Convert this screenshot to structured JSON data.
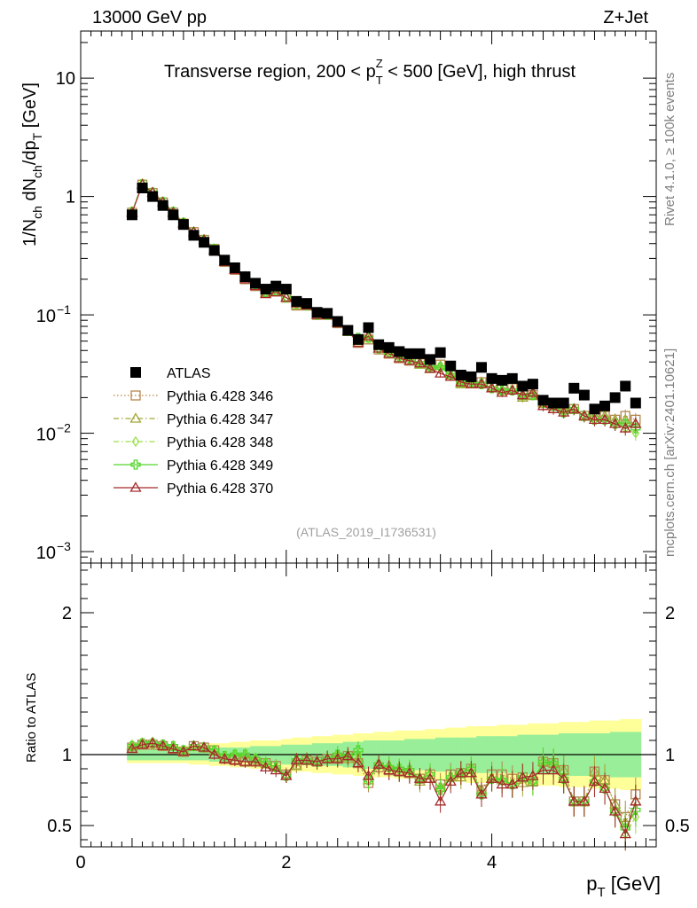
{
  "header": {
    "left": "13000 GeV pp",
    "right": "Z+Jet"
  },
  "side_labels": {
    "top": "Rivet 4.1.0, ≥ 100k events",
    "bottom": "mcplots.cern.ch [arXiv:2401.10621]"
  },
  "chart_data": [
    {
      "type": "scatter",
      "title": "Transverse region, 200 < pT^Z < 500 [GeV], high thrust",
      "title_parts": {
        "main": "Transverse region, 200 < p",
        "sub": "T",
        "sup": "Z",
        "tail": " < 500 [GeV], high thrust"
      },
      "ylabel": "1/N_ch dN_ch/dp_T [GeV]",
      "ylabel_parts": {
        "a": "1/N",
        "a_sub": "ch",
        "b": " dN",
        "b_sub": "ch",
        "c": "/dp",
        "c_sub": "T",
        "d": " [GeV]"
      },
      "yscale": "log",
      "ylim": [
        0.0008,
        25
      ],
      "xlim": [
        0,
        5.6
      ],
      "y_ticks": [
        {
          "v": 0.001,
          "base": "10",
          "exp": "−3"
        },
        {
          "v": 0.01,
          "base": "10",
          "exp": "−2"
        },
        {
          "v": 0.1,
          "base": "10",
          "exp": "−1"
        },
        {
          "v": 1,
          "label": "1"
        },
        {
          "v": 10,
          "label": "10"
        }
      ],
      "watermark": "(ATLAS_2019_I1736531)",
      "x": [
        0.5,
        0.6,
        0.7,
        0.8,
        0.9,
        1.0,
        1.1,
        1.2,
        1.3,
        1.4,
        1.5,
        1.6,
        1.7,
        1.8,
        1.9,
        2.0,
        2.1,
        2.2,
        2.3,
        2.4,
        2.5,
        2.6,
        2.7,
        2.8,
        2.9,
        3.0,
        3.1,
        3.2,
        3.3,
        3.4,
        3.5,
        3.6,
        3.7,
        3.8,
        3.9,
        4.0,
        4.1,
        4.2,
        4.3,
        4.4,
        4.5,
        4.6,
        4.7,
        4.8,
        4.9,
        5.0,
        5.1,
        5.2,
        5.3,
        5.4
      ],
      "series": [
        {
          "name": "ATLAS",
          "marker": "square",
          "color": "#000000",
          "values": [
            0.7,
            1.18,
            1.0,
            0.84,
            0.7,
            0.58,
            0.47,
            0.41,
            0.35,
            0.29,
            0.25,
            0.21,
            0.185,
            0.165,
            0.175,
            0.165,
            0.13,
            0.125,
            0.105,
            0.103,
            0.088,
            0.074,
            0.062,
            0.078,
            0.056,
            0.053,
            0.049,
            0.047,
            0.047,
            0.042,
            0.048,
            0.037,
            0.031,
            0.03,
            0.036,
            0.029,
            0.028,
            0.029,
            0.025,
            0.026,
            0.019,
            0.018,
            0.018,
            0.024,
            0.021,
            0.016,
            0.017,
            0.02,
            0.025,
            0.018
          ]
        },
        {
          "name": "Pythia 6.428 346",
          "marker": "open-square",
          "color": "#b5874f",
          "line": "dotted",
          "values": [
            0.73,
            1.26,
            1.07,
            0.89,
            0.73,
            0.59,
            0.5,
            0.43,
            0.36,
            0.28,
            0.24,
            0.2,
            0.175,
            0.155,
            0.16,
            0.14,
            0.12,
            0.12,
            0.1,
            0.1,
            0.085,
            0.073,
            0.058,
            0.062,
            0.051,
            0.047,
            0.043,
            0.041,
            0.039,
            0.036,
            0.038,
            0.032,
            0.027,
            0.027,
            0.027,
            0.025,
            0.024,
            0.024,
            0.021,
            0.021,
            0.018,
            0.017,
            0.016,
            0.016,
            0.014,
            0.014,
            0.014,
            0.013,
            0.014,
            0.013
          ]
        },
        {
          "name": "Pythia 6.428 347",
          "marker": "open-triangle",
          "color": "#a3a836",
          "line": "dashdot",
          "values": [
            0.74,
            1.27,
            1.08,
            0.9,
            0.74,
            0.6,
            0.5,
            0.43,
            0.36,
            0.28,
            0.24,
            0.21,
            0.18,
            0.155,
            0.16,
            0.14,
            0.12,
            0.12,
            0.1,
            0.1,
            0.086,
            0.072,
            0.06,
            0.064,
            0.052,
            0.049,
            0.043,
            0.041,
            0.038,
            0.035,
            0.037,
            0.031,
            0.026,
            0.026,
            0.027,
            0.024,
            0.023,
            0.023,
            0.02,
            0.021,
            0.018,
            0.017,
            0.016,
            0.016,
            0.014,
            0.014,
            0.014,
            0.013,
            0.013,
            0.012
          ]
        },
        {
          "name": "Pythia 6.428 348",
          "marker": "open-diamond",
          "color": "#9be04a",
          "line": "dashdot",
          "values": [
            0.75,
            1.28,
            1.09,
            0.9,
            0.74,
            0.6,
            0.5,
            0.43,
            0.36,
            0.29,
            0.25,
            0.21,
            0.18,
            0.155,
            0.16,
            0.14,
            0.125,
            0.12,
            0.1,
            0.1,
            0.088,
            0.073,
            0.062,
            0.064,
            0.052,
            0.048,
            0.044,
            0.042,
            0.039,
            0.036,
            0.036,
            0.031,
            0.027,
            0.027,
            0.026,
            0.024,
            0.023,
            0.023,
            0.021,
            0.021,
            0.018,
            0.017,
            0.015,
            0.016,
            0.014,
            0.013,
            0.013,
            0.012,
            0.011,
            0.01
          ]
        },
        {
          "name": "Pythia 6.428 349",
          "marker": "open-cross",
          "color": "#53d62a",
          "line": "solid",
          "values": [
            0.74,
            1.27,
            1.08,
            0.9,
            0.74,
            0.6,
            0.5,
            0.43,
            0.36,
            0.29,
            0.25,
            0.21,
            0.18,
            0.155,
            0.16,
            0.14,
            0.125,
            0.12,
            0.1,
            0.1,
            0.088,
            0.073,
            0.064,
            0.064,
            0.052,
            0.048,
            0.044,
            0.042,
            0.039,
            0.036,
            0.036,
            0.031,
            0.027,
            0.027,
            0.026,
            0.024,
            0.023,
            0.023,
            0.021,
            0.021,
            0.018,
            0.017,
            0.015,
            0.016,
            0.014,
            0.013,
            0.013,
            0.012,
            0.012,
            0.011
          ]
        },
        {
          "name": "Pythia 6.428 370",
          "marker": "open-triangle",
          "color": "#a52a2a",
          "line": "solid",
          "values": [
            0.73,
            1.26,
            1.08,
            0.89,
            0.73,
            0.59,
            0.5,
            0.43,
            0.35,
            0.28,
            0.24,
            0.2,
            0.175,
            0.15,
            0.155,
            0.14,
            0.125,
            0.12,
            0.1,
            0.1,
            0.085,
            0.073,
            0.058,
            0.066,
            0.052,
            0.047,
            0.043,
            0.041,
            0.039,
            0.035,
            0.032,
            0.03,
            0.027,
            0.026,
            0.026,
            0.024,
            0.022,
            0.023,
            0.021,
            0.022,
            0.017,
            0.016,
            0.015,
            0.016,
            0.014,
            0.013,
            0.013,
            0.012,
            0.011,
            0.012
          ]
        }
      ]
    },
    {
      "type": "line",
      "ylabel": "Ratio to ATLAS",
      "xlabel": "p_T [GeV]",
      "xlabel_parts": {
        "main": "p",
        "sub": "T",
        "tail": " [GeV]"
      },
      "xlim": [
        0,
        5.6
      ],
      "ylim": [
        0.35,
        2.35
      ],
      "x_ticks": [
        0,
        2,
        4
      ],
      "y_ticks": [
        0.5,
        1,
        2
      ],
      "reference": 1,
      "band_inner_halfwidth": [
        0.04,
        0.04,
        0.04,
        0.04,
        0.04,
        0.04,
        0.04,
        0.04,
        0.05,
        0.05,
        0.05,
        0.05,
        0.06,
        0.06,
        0.06,
        0.07,
        0.07,
        0.07,
        0.08,
        0.08,
        0.08,
        0.09,
        0.09,
        0.1,
        0.1,
        0.1,
        0.1,
        0.11,
        0.11,
        0.11,
        0.12,
        0.12,
        0.12,
        0.12,
        0.13,
        0.13,
        0.13,
        0.13,
        0.14,
        0.14,
        0.14,
        0.14,
        0.15,
        0.15,
        0.15,
        0.15,
        0.15,
        0.16,
        0.16,
        0.16
      ],
      "band_outer_halfwidth": [
        0.06,
        0.06,
        0.06,
        0.06,
        0.06,
        0.06,
        0.07,
        0.07,
        0.08,
        0.08,
        0.09,
        0.09,
        0.1,
        0.1,
        0.1,
        0.11,
        0.12,
        0.12,
        0.13,
        0.13,
        0.14,
        0.14,
        0.15,
        0.15,
        0.16,
        0.16,
        0.17,
        0.17,
        0.17,
        0.18,
        0.18,
        0.19,
        0.19,
        0.2,
        0.2,
        0.2,
        0.21,
        0.21,
        0.21,
        0.22,
        0.22,
        0.22,
        0.23,
        0.23,
        0.23,
        0.24,
        0.24,
        0.24,
        0.25,
        0.25
      ],
      "series": [
        {
          "name": "Pythia 6.428 346",
          "values": [
            1.05,
            1.07,
            1.07,
            1.06,
            1.04,
            1.02,
            1.06,
            1.05,
            1.03,
            0.97,
            0.96,
            0.95,
            0.95,
            0.94,
            0.92,
            0.86,
            0.93,
            0.96,
            0.95,
            0.97,
            0.97,
            0.99,
            0.94,
            0.8,
            0.91,
            0.89,
            0.88,
            0.87,
            0.83,
            0.86,
            0.79,
            0.86,
            0.87,
            0.9,
            0.75,
            0.86,
            0.86,
            0.83,
            0.84,
            0.81,
            0.95,
            0.94,
            0.89,
            0.67,
            0.67,
            0.88,
            0.82,
            0.65,
            0.56,
            0.72
          ]
        },
        {
          "name": "Pythia 6.428 347",
          "values": [
            1.06,
            1.08,
            1.08,
            1.07,
            1.06,
            1.03,
            1.06,
            1.05,
            1.03,
            0.97,
            0.96,
            1.0,
            0.97,
            0.94,
            0.91,
            0.85,
            0.92,
            0.96,
            0.95,
            0.97,
            0.98,
            0.97,
            0.97,
            0.82,
            0.93,
            0.92,
            0.88,
            0.87,
            0.81,
            0.83,
            0.77,
            0.84,
            0.84,
            0.87,
            0.75,
            0.83,
            0.82,
            0.79,
            0.8,
            0.81,
            0.95,
            0.94,
            0.89,
            0.67,
            0.67,
            0.88,
            0.82,
            0.65,
            0.52,
            0.67
          ]
        },
        {
          "name": "Pythia 6.428 348",
          "values": [
            1.07,
            1.08,
            1.09,
            1.07,
            1.06,
            1.03,
            1.06,
            1.05,
            1.03,
            0.99,
            1.0,
            1.0,
            0.97,
            0.94,
            0.91,
            0.85,
            0.96,
            0.96,
            0.95,
            0.97,
            1.0,
            0.99,
            1.0,
            0.82,
            0.93,
            0.91,
            0.9,
            0.89,
            0.83,
            0.86,
            0.75,
            0.84,
            0.87,
            0.9,
            0.72,
            0.83,
            0.82,
            0.79,
            0.84,
            0.81,
            0.95,
            0.94,
            0.83,
            0.67,
            0.67,
            0.81,
            0.76,
            0.6,
            0.44,
            0.56
          ]
        },
        {
          "name": "Pythia 6.428 349",
          "values": [
            1.06,
            1.08,
            1.08,
            1.07,
            1.06,
            1.03,
            1.06,
            1.05,
            1.03,
            0.99,
            1.0,
            1.0,
            0.97,
            0.94,
            0.91,
            0.85,
            0.96,
            0.96,
            0.95,
            0.97,
            1.0,
            0.99,
            1.03,
            0.82,
            0.93,
            0.91,
            0.9,
            0.89,
            0.83,
            0.86,
            0.75,
            0.84,
            0.87,
            0.9,
            0.72,
            0.83,
            0.82,
            0.79,
            0.84,
            0.81,
            0.95,
            0.94,
            0.83,
            0.67,
            0.67,
            0.81,
            0.76,
            0.6,
            0.48,
            0.61
          ]
        },
        {
          "name": "Pythia 6.428 370",
          "values": [
            1.04,
            1.07,
            1.08,
            1.06,
            1.04,
            1.02,
            1.06,
            1.05,
            1.0,
            0.97,
            0.96,
            0.95,
            0.95,
            0.91,
            0.89,
            0.85,
            0.96,
            0.96,
            0.95,
            0.97,
            0.97,
            0.99,
            0.94,
            0.85,
            0.93,
            0.89,
            0.88,
            0.87,
            0.83,
            0.83,
            0.67,
            0.81,
            0.87,
            0.87,
            0.72,
            0.83,
            0.79,
            0.79,
            0.84,
            0.85,
            0.89,
            0.89,
            0.83,
            0.67,
            0.67,
            0.81,
            0.76,
            0.6,
            0.44,
            0.67
          ]
        }
      ]
    }
  ]
}
